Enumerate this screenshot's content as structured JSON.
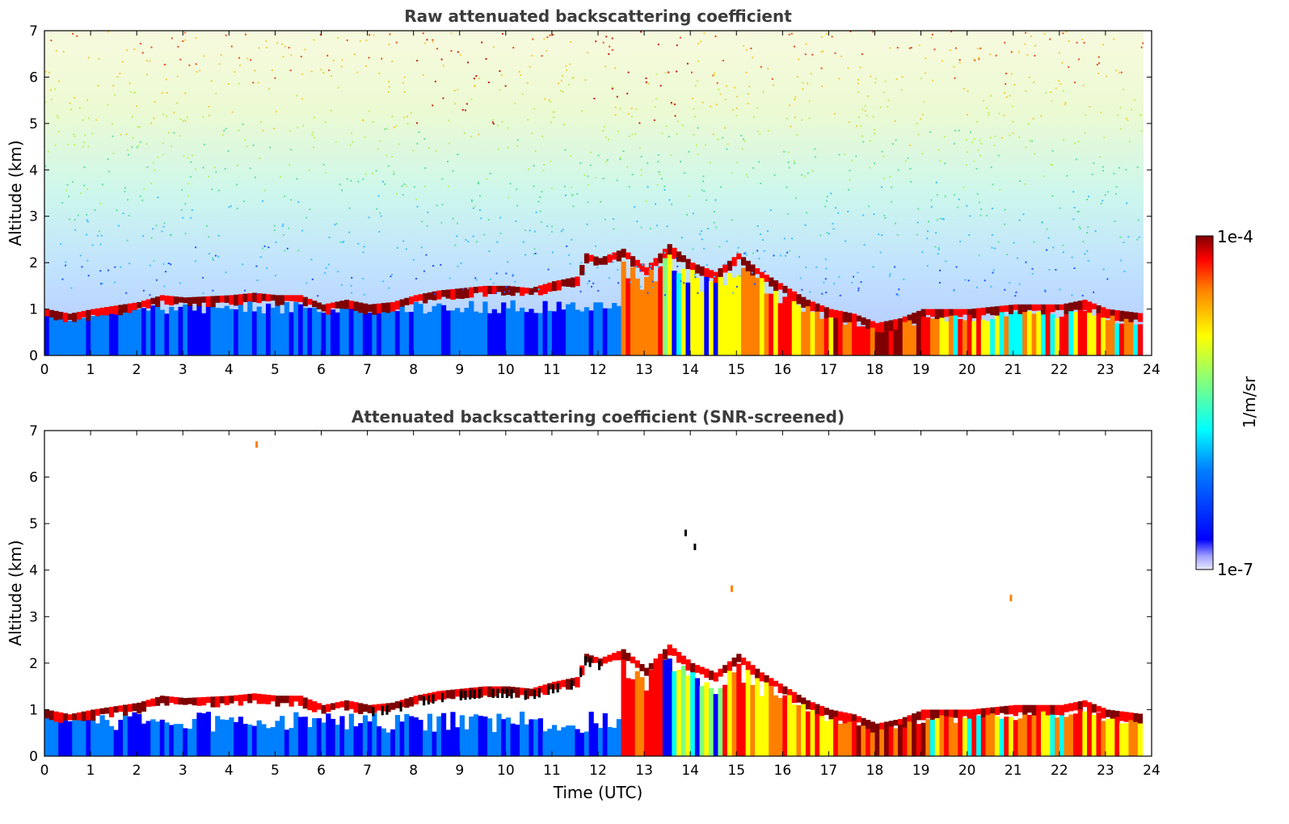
{
  "chart_data": [
    {
      "type": "heatmap",
      "title": "Raw attenuated backscattering coefficient",
      "xlabel": "",
      "ylabel": "Altitude (km)",
      "xlim": [
        0,
        24
      ],
      "ylim": [
        0,
        7
      ],
      "xticks": [
        "0",
        "1",
        "2",
        "3",
        "4",
        "5",
        "6",
        "7",
        "8",
        "9",
        "10",
        "11",
        "12",
        "13",
        "14",
        "15",
        "16",
        "17",
        "18",
        "19",
        "20",
        "21",
        "22",
        "23",
        "24"
      ],
      "yticks": [
        "0",
        "1",
        "2",
        "3",
        "4",
        "5",
        "6",
        "7"
      ],
      "layer_top_km": [
        [
          0,
          1.0
        ],
        [
          0.5,
          0.9
        ],
        [
          1,
          1.0
        ],
        [
          2,
          1.15
        ],
        [
          2.5,
          1.3
        ],
        [
          3,
          1.25
        ],
        [
          4,
          1.3
        ],
        [
          4.5,
          1.35
        ],
        [
          5,
          1.3
        ],
        [
          5.5,
          1.3
        ],
        [
          6,
          1.1
        ],
        [
          6.5,
          1.2
        ],
        [
          7,
          1.1
        ],
        [
          7.5,
          1.15
        ],
        [
          8,
          1.3
        ],
        [
          8.5,
          1.4
        ],
        [
          9,
          1.45
        ],
        [
          9.5,
          1.5
        ],
        [
          10,
          1.5
        ],
        [
          10.5,
          1.45
        ],
        [
          11,
          1.6
        ],
        [
          11.5,
          1.7
        ],
        [
          11.7,
          2.2
        ],
        [
          12,
          2.1
        ],
        [
          12.5,
          2.3
        ],
        [
          13,
          1.9
        ],
        [
          13.5,
          2.4
        ],
        [
          14,
          2.0
        ],
        [
          14.5,
          1.8
        ],
        [
          15,
          2.2
        ],
        [
          15.5,
          1.8
        ],
        [
          16,
          1.5
        ],
        [
          16.5,
          1.2
        ],
        [
          17,
          1.0
        ],
        [
          17.5,
          0.9
        ],
        [
          18,
          0.7
        ],
        [
          18.5,
          0.8
        ],
        [
          19,
          1.0
        ],
        [
          20,
          1.0
        ],
        [
          21,
          1.1
        ],
        [
          22,
          1.1
        ],
        [
          22.5,
          1.2
        ],
        [
          23,
          1.0
        ],
        [
          23.8,
          0.9
        ]
      ]
    },
    {
      "type": "heatmap",
      "title": "Attenuated backscattering coefficient (SNR-screened)",
      "xlabel": "Time (UTC)",
      "ylabel": "Altitude (km)",
      "xlim": [
        0,
        24
      ],
      "ylim": [
        0,
        7
      ],
      "xticks": [
        "0",
        "1",
        "2",
        "3",
        "4",
        "5",
        "6",
        "7",
        "8",
        "9",
        "10",
        "11",
        "12",
        "13",
        "14",
        "15",
        "16",
        "17",
        "18",
        "19",
        "20",
        "21",
        "22",
        "23",
        "24"
      ],
      "yticks": [
        "0",
        "1",
        "2",
        "3",
        "4",
        "5",
        "6",
        "7"
      ],
      "isolated_returns": [
        {
          "time": 4.6,
          "altitude": 6.7
        },
        {
          "time": 14.1,
          "altitude": 4.5
        },
        {
          "time": 13.9,
          "altitude": 4.8
        },
        {
          "time": 14.9,
          "altitude": 3.6
        },
        {
          "time": 20.95,
          "altitude": 3.4
        }
      ]
    }
  ],
  "colorbar": {
    "max_label": "1e-4",
    "min_label": "1e-7",
    "unit_label": "1/m/sr",
    "colors": [
      "#00007f",
      "#0000ff",
      "#007fff",
      "#00ffff",
      "#7fff7f",
      "#ffff00",
      "#ff7f00",
      "#ff0000",
      "#7f0000"
    ]
  }
}
